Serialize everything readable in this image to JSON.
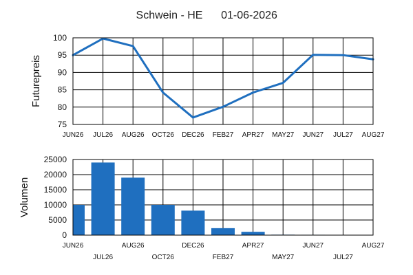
{
  "header": {
    "title": "Schwein - HE",
    "date": "01-06-2026"
  },
  "colors": {
    "series": "#1f6fbf",
    "grid": "#000000",
    "frame": "#000000"
  },
  "chart_data": [
    {
      "type": "line",
      "title": "",
      "xlabel": "",
      "ylabel": "Futurepreis",
      "ylim": [
        75,
        100
      ],
      "y_ticks": [
        75,
        80,
        85,
        90,
        95,
        100
      ],
      "grid": true,
      "categories": [
        "JUN26",
        "JUL26",
        "AUG26",
        "OCT26",
        "DEC26",
        "FEB27",
        "APR27",
        "MAY27",
        "JUN27",
        "JUL27",
        "AUG27"
      ],
      "values": [
        95.0,
        99.8,
        97.6,
        84.2,
        77.0,
        80.1,
        84.2,
        87.0,
        95.1,
        95.0,
        93.8
      ]
    },
    {
      "type": "bar",
      "title": "",
      "xlabel": "",
      "ylabel": "Volumen",
      "ylim": [
        0,
        25000
      ],
      "y_ticks": [
        "0",
        "5000",
        "10000",
        "15000",
        "20000",
        "25000"
      ],
      "grid": true,
      "categories": [
        "JUN26",
        "JUL26",
        "AUG26",
        "OCT26",
        "DEC26",
        "FEB27",
        "APR27",
        "MAY27",
        "JUN27",
        "JUL27",
        "AUG27"
      ],
      "values": [
        10000,
        24000,
        19000,
        10000,
        8100,
        2300,
        1100,
        150,
        120,
        100,
        80
      ]
    }
  ]
}
